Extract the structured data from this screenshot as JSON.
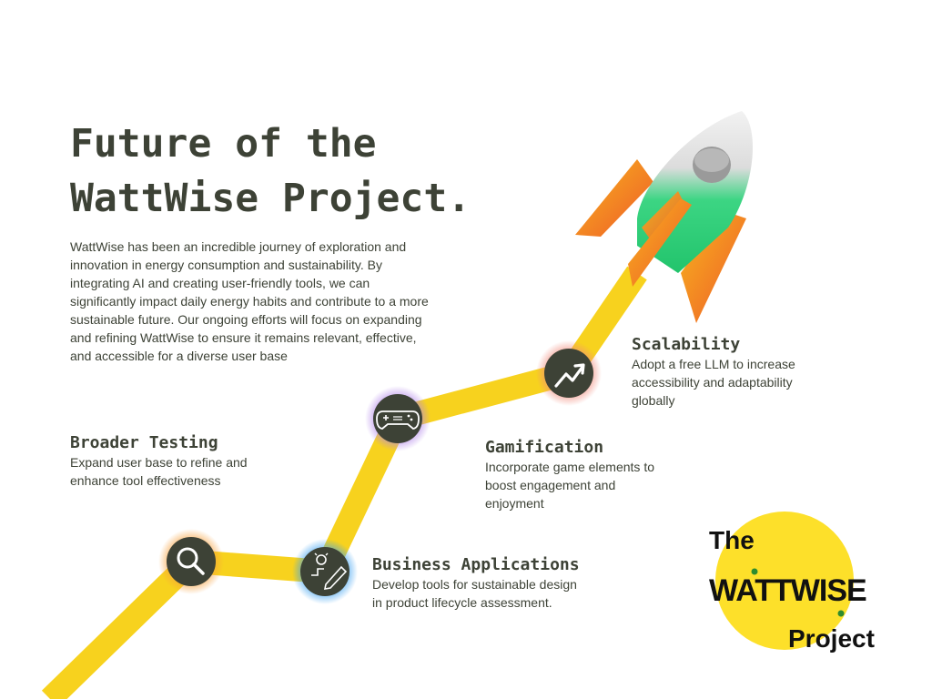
{
  "title_line1": "Future of the",
  "title_line2": "WattWise Project.",
  "intro": "WattWise has been an incredible journey of exploration and innovation in energy consumption and sustainability. By integrating AI and creating user-friendly tools, we can significantly impact daily energy habits and contribute to a more sustainable future. Our ongoing efforts will focus on expanding and refining WattWise to ensure it remains relevant, effective, and accessible for a diverse user base",
  "milestones": [
    {
      "heading": "Broader Testing",
      "body": "Expand user base to refine and enhance tool effectiveness",
      "icon": "magnifier-icon"
    },
    {
      "heading": "Business Applications",
      "body": "Develop tools for sustainable design in product lifecycle assessment.",
      "icon": "lightbulb-pencil-icon"
    },
    {
      "heading": "Gamification",
      "body": "Incorporate game elements to boost engagement and enjoyment",
      "icon": "gamepad-icon"
    },
    {
      "heading": "Scalability",
      "body": "Adopt a free LLM to increase accessibility and adaptability globally",
      "icon": "trending-up-icon"
    }
  ],
  "logo": {
    "the": "The",
    "name": "WATTWISE",
    "project": "Project"
  },
  "colors": {
    "text": "#3d4236",
    "path": "#f7d21e",
    "icon_fill": "#3d4236",
    "glow_testing": "#f6a03c",
    "glow_business": "#3aa0f0",
    "glow_gamification": "#b184e8",
    "glow_scalability": "#f08a7a",
    "logo_circle": "#fde02a",
    "logo_dot": "#2e8b2e",
    "rocket_body": "#2ed17a",
    "rocket_fins": "#f79a1e"
  }
}
